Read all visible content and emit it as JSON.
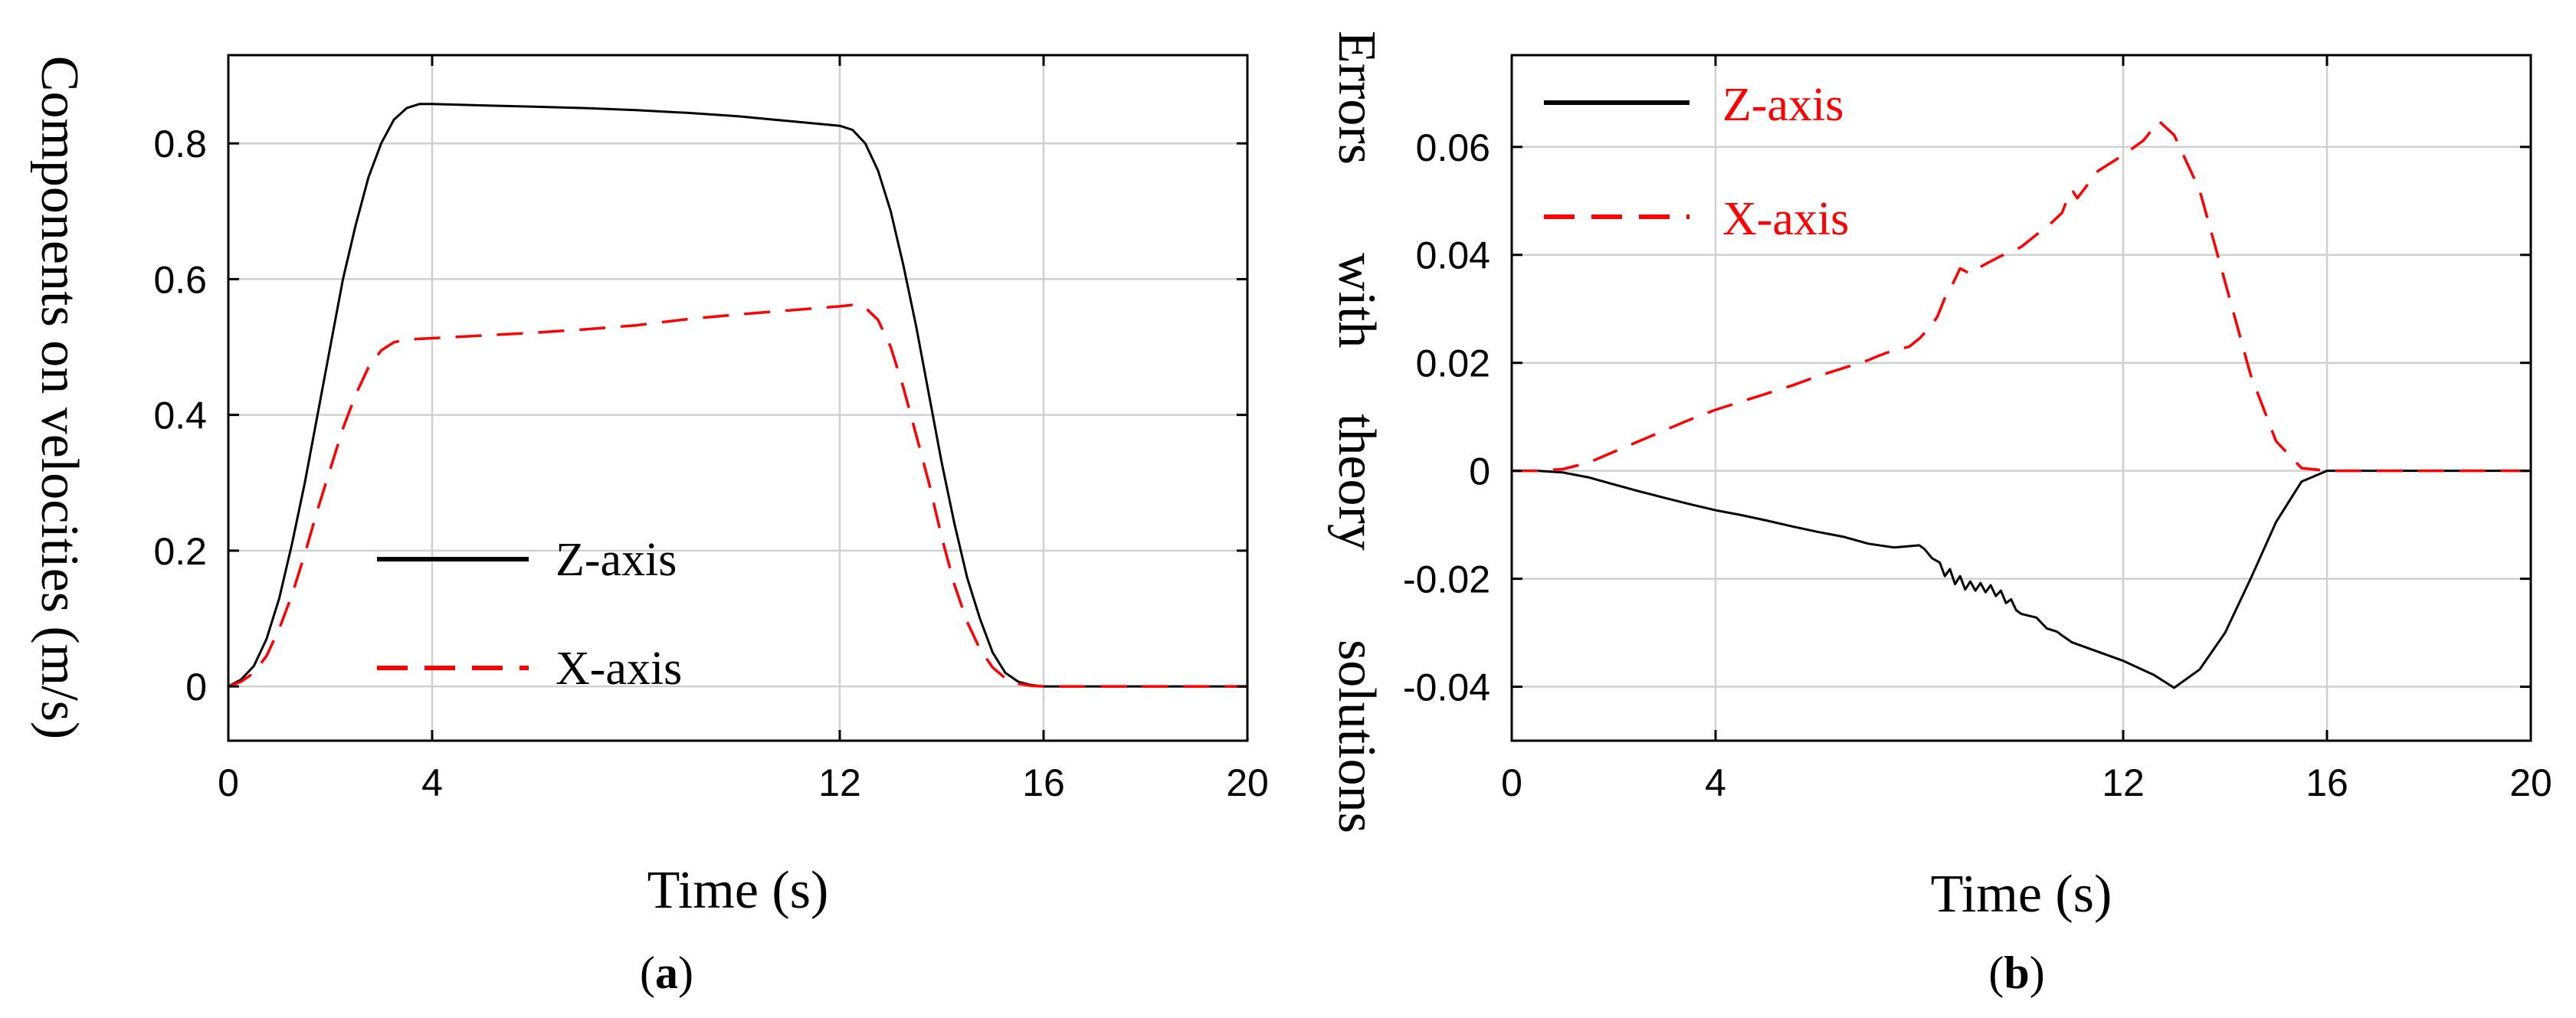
{
  "colors": {
    "z_axis": "#000000",
    "x_axis": "#ff0000",
    "grid": "#d0d0d0",
    "axes": "#000000"
  },
  "chart_data": [
    {
      "panel": "a",
      "type": "line",
      "caption": {
        "open": "(",
        "letter": "a",
        "close": ")"
      },
      "title": "",
      "xlabel": "Time (s)",
      "ylabel": "Components on velocities (m/s)",
      "xlim": [
        0,
        20
      ],
      "ylim": [
        -0.08,
        0.93
      ],
      "xticks": [
        0,
        4,
        12,
        16,
        20
      ],
      "xtick_labels": [
        "0",
        "4",
        "12",
        "16",
        "20"
      ],
      "yticks": [
        0,
        0.2,
        0.4,
        0.6,
        0.8
      ],
      "ytick_labels": [
        "0",
        "0.2",
        "0.4",
        "0.6",
        "0.8"
      ],
      "grid": true,
      "legend": {
        "position": "lower-left",
        "text_color": "#000000",
        "entries": [
          "Z-axis",
          "X-axis"
        ]
      },
      "series": [
        {
          "name": "Z-axis",
          "style": "solid",
          "x": [
            0,
            0.25,
            0.5,
            0.75,
            1,
            1.25,
            1.5,
            1.75,
            2,
            2.25,
            2.5,
            2.75,
            3,
            3.25,
            3.5,
            3.75,
            4,
            5,
            6,
            7,
            8,
            9,
            10,
            11,
            12,
            12.25,
            12.5,
            12.75,
            13,
            13.25,
            13.5,
            13.75,
            14,
            14.25,
            14.5,
            14.75,
            15,
            15.25,
            15.5,
            15.75,
            16,
            17,
            18,
            19,
            20
          ],
          "y": [
            0,
            0.01,
            0.03,
            0.07,
            0.13,
            0.21,
            0.3,
            0.4,
            0.5,
            0.6,
            0.68,
            0.75,
            0.8,
            0.835,
            0.852,
            0.858,
            0.858,
            0.856,
            0.854,
            0.852,
            0.849,
            0.845,
            0.84,
            0.833,
            0.826,
            0.82,
            0.8,
            0.76,
            0.7,
            0.62,
            0.53,
            0.43,
            0.33,
            0.24,
            0.16,
            0.1,
            0.05,
            0.02,
            0.007,
            0.002,
            0,
            0,
            0,
            0,
            0
          ]
        },
        {
          "name": "X-axis",
          "style": "dashed",
          "x": [
            0,
            0.25,
            0.5,
            0.75,
            1,
            1.25,
            1.5,
            1.75,
            2,
            2.25,
            2.5,
            2.75,
            3,
            3.25,
            3.5,
            3.75,
            4,
            5,
            6,
            7,
            8,
            9,
            10,
            11,
            12,
            12.25,
            12.5,
            12.75,
            13,
            13.25,
            13.5,
            13.75,
            14,
            14.25,
            14.5,
            14.75,
            15,
            15.25,
            15.5,
            15.75,
            16,
            17,
            18,
            19,
            20
          ],
          "y": [
            0,
            0.007,
            0.02,
            0.045,
            0.085,
            0.135,
            0.195,
            0.26,
            0.32,
            0.38,
            0.43,
            0.47,
            0.495,
            0.507,
            0.511,
            0.512,
            0.513,
            0.517,
            0.521,
            0.526,
            0.532,
            0.541,
            0.548,
            0.554,
            0.56,
            0.562,
            0.558,
            0.54,
            0.5,
            0.44,
            0.37,
            0.3,
            0.22,
            0.15,
            0.095,
            0.055,
            0.028,
            0.012,
            0.004,
            0.001,
            0,
            0,
            0,
            0,
            0
          ]
        }
      ]
    },
    {
      "panel": "b",
      "type": "line",
      "caption": {
        "open": "(",
        "letter": "b",
        "close": ")"
      },
      "title": "",
      "xlabel": "Time (s)",
      "ylabel_words": [
        "Errors",
        "with",
        "theory",
        "solutions"
      ],
      "xlim": [
        0,
        20
      ],
      "ylim": [
        -0.05,
        0.077
      ],
      "xticks": [
        0,
        4,
        12,
        16,
        20
      ],
      "xtick_labels": [
        "0",
        "4",
        "12",
        "16",
        "20"
      ],
      "yticks": [
        -0.04,
        -0.02,
        0,
        0.02,
        0.04,
        0.06
      ],
      "ytick_labels": [
        "-0.04",
        "-0.02",
        "0",
        "0.02",
        "0.04",
        "0.06"
      ],
      "grid": true,
      "legend": {
        "position": "top-left",
        "text_color": "#ff0000",
        "entries": [
          "Z-axis",
          "X-axis"
        ]
      },
      "series": [
        {
          "name": "Z-axis",
          "style": "solid",
          "x": [
            0,
            0.5,
            1,
            1.5,
            2,
            2.5,
            3,
            3.5,
            4,
            4.5,
            5,
            5.5,
            6,
            6.5,
            7,
            7.5,
            8,
            8.1,
            8.25,
            8.4,
            8.5,
            8.6,
            8.7,
            8.8,
            8.9,
            9,
            9.1,
            9.2,
            9.3,
            9.4,
            9.5,
            9.6,
            9.7,
            9.8,
            9.9,
            10,
            10.3,
            10.5,
            10.7,
            10.8,
            11,
            11.5,
            12,
            12.3,
            12.6,
            13,
            13.5,
            14,
            14.5,
            15,
            15.5,
            16,
            16.5,
            17,
            18,
            19,
            20
          ],
          "y": [
            0,
            0,
            -0.0003,
            -0.0012,
            -0.0025,
            -0.0038,
            -0.005,
            -0.0062,
            -0.0073,
            -0.0082,
            -0.0092,
            -0.0103,
            -0.0113,
            -0.0122,
            -0.0135,
            -0.0142,
            -0.0138,
            -0.0145,
            -0.0162,
            -0.017,
            -0.0195,
            -0.0182,
            -0.021,
            -0.0195,
            -0.022,
            -0.0205,
            -0.0222,
            -0.0208,
            -0.0225,
            -0.0212,
            -0.0232,
            -0.0222,
            -0.0245,
            -0.0238,
            -0.0258,
            -0.0265,
            -0.0272,
            -0.0292,
            -0.0298,
            -0.0305,
            -0.0318,
            -0.0335,
            -0.0352,
            -0.0365,
            -0.0378,
            -0.0402,
            -0.0368,
            -0.03,
            -0.02,
            -0.0095,
            -0.002,
            0,
            0,
            0,
            0,
            0,
            0
          ]
        },
        {
          "name": "X-axis",
          "style": "dashed",
          "x": [
            0,
            0.5,
            1,
            1.5,
            2,
            2.5,
            3,
            3.5,
            4,
            4.5,
            5,
            5.5,
            6,
            6.5,
            7,
            7.2,
            7.4,
            7.6,
            7.8,
            8,
            8.2,
            8.35,
            8.5,
            8.65,
            8.8,
            9,
            9.2,
            9.4,
            9.6,
            9.8,
            10,
            10.2,
            10.4,
            10.6,
            10.8,
            10.9,
            11,
            11.1,
            11.5,
            12,
            12.4,
            12.7,
            13,
            13.5,
            14,
            14.5,
            15,
            15.5,
            16,
            17,
            18,
            19,
            20
          ],
          "y": [
            0,
            0,
            0.0003,
            0.0015,
            0.0035,
            0.0055,
            0.0075,
            0.0095,
            0.0113,
            0.0128,
            0.0143,
            0.0158,
            0.0175,
            0.019,
            0.0205,
            0.0213,
            0.022,
            0.0225,
            0.023,
            0.0245,
            0.0265,
            0.0285,
            0.032,
            0.0345,
            0.0375,
            0.0365,
            0.0378,
            0.0388,
            0.0398,
            0.0405,
            0.0415,
            0.043,
            0.0445,
            0.046,
            0.0478,
            0.0502,
            0.052,
            0.0505,
            0.0555,
            0.0585,
            0.0612,
            0.0648,
            0.0622,
            0.052,
            0.035,
            0.0178,
            0.0055,
            0.0005,
            0,
            0,
            0,
            0,
            0
          ]
        }
      ]
    }
  ]
}
